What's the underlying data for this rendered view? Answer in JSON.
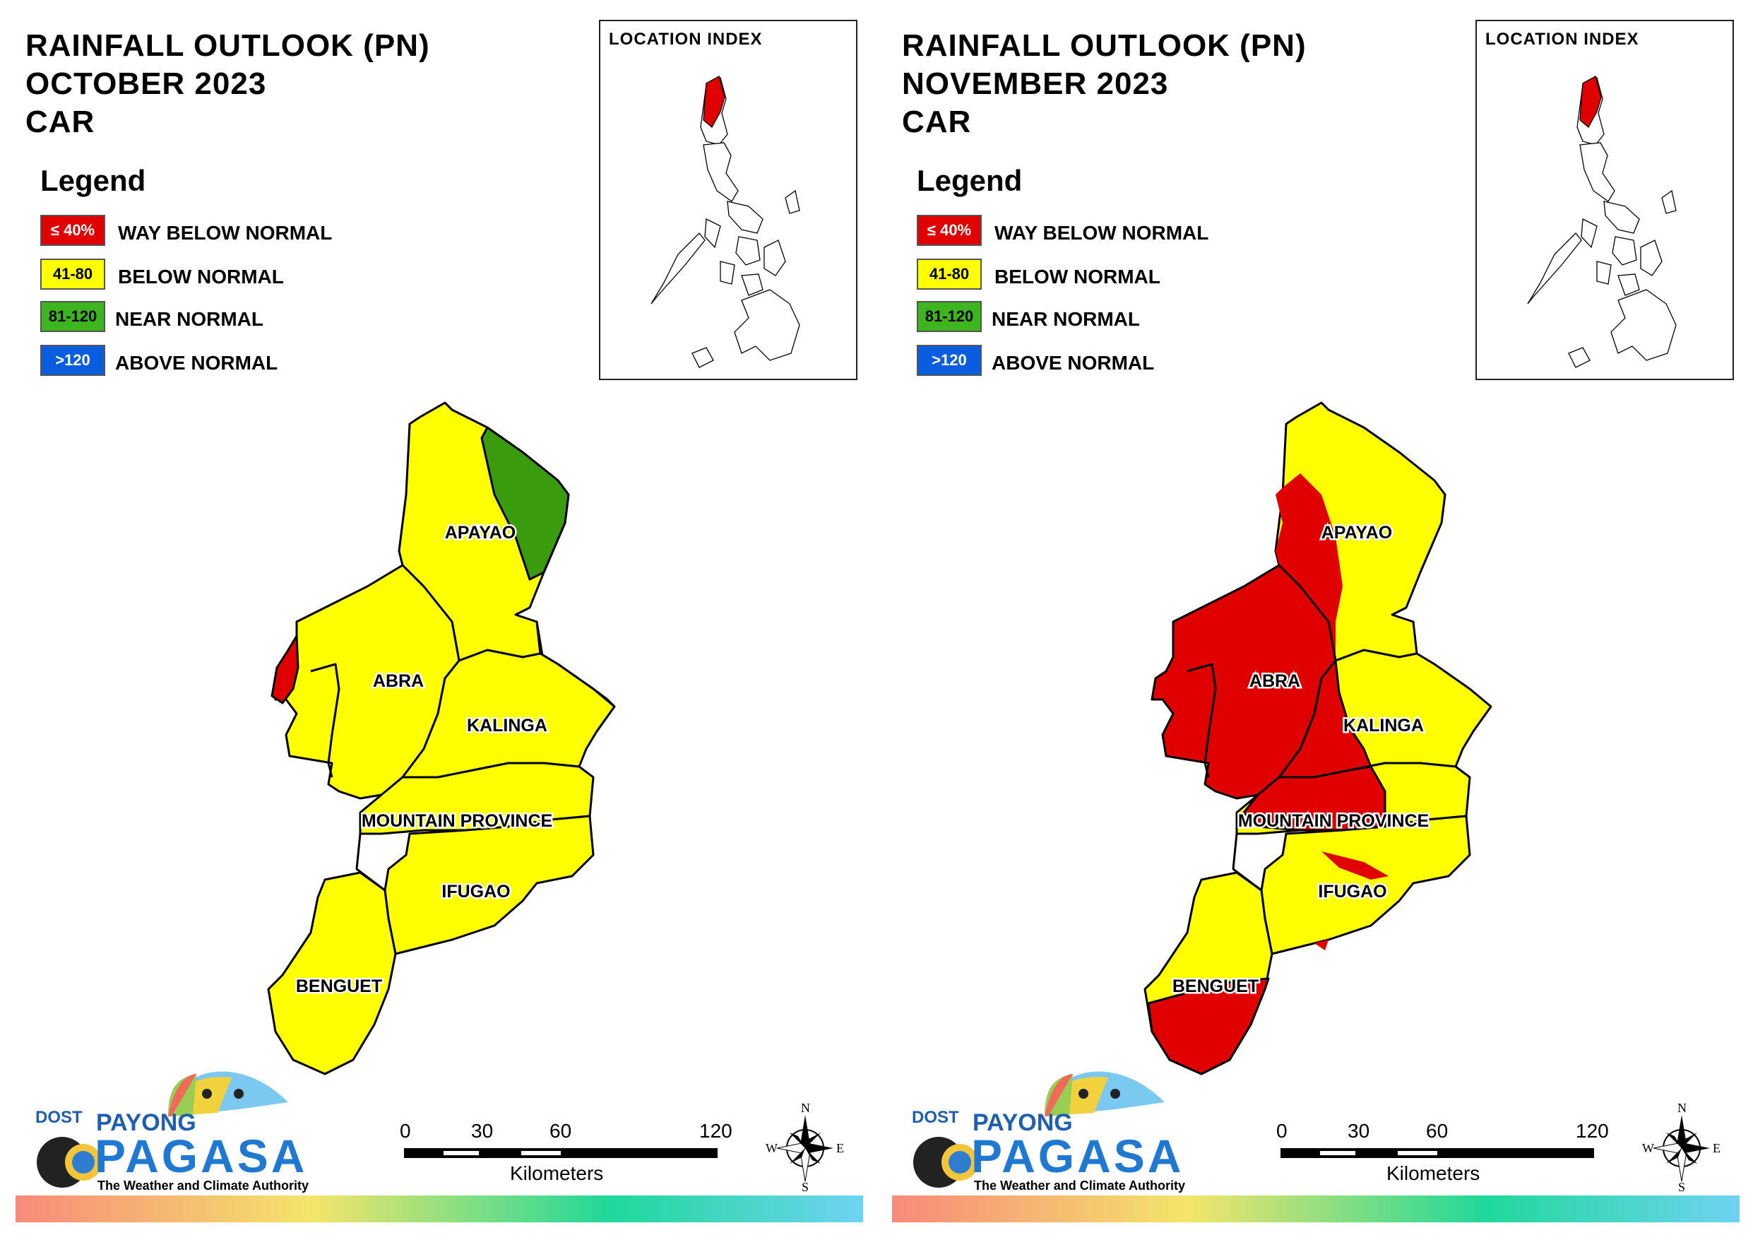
{
  "panels": [
    {
      "title": [
        "RAINFALL OUTLOOK (PN)",
        "OCTOBER 2023",
        "CAR"
      ],
      "legend_title": "Legend",
      "index_title": "LOCATION INDEX",
      "provinces": [
        "APAYAO",
        "ABRA",
        "KALINGA",
        "MOUNTAIN PROVINCE",
        "IFUGAO",
        "BENGUET"
      ]
    },
    {
      "title": [
        "RAINFALL OUTLOOK (PN)",
        "NOVEMBER 2023",
        "CAR"
      ],
      "legend_title": "Legend",
      "index_title": "LOCATION INDEX",
      "provinces": [
        "APAYAO",
        "ABRA",
        "KALINGA",
        "MOUNTAIN PROVINCE",
        "IFUGAO",
        "BENGUET"
      ]
    }
  ],
  "legend": [
    {
      "range": "≤ 40%",
      "label": "WAY BELOW NORMAL",
      "color": "#e00000",
      "text_color": "#ffffff"
    },
    {
      "range": "41-80",
      "label": "BELOW NORMAL",
      "color": "#ffff00",
      "text_color": "#000000"
    },
    {
      "range": "81-120",
      "label": "NEAR NORMAL",
      "color": "#3db51f",
      "text_color": "#000000"
    },
    {
      "range": ">120",
      "label": "ABOVE NORMAL",
      "color": "#0b5de0",
      "text_color": "#ffffff"
    }
  ],
  "scale": {
    "ticks": [
      "0",
      "30",
      "60",
      "120"
    ],
    "unit": "Kilometers"
  },
  "compass": {
    "n": "N",
    "s": "S",
    "e": "E",
    "w": "W"
  },
  "logo": {
    "dost": "DOST",
    "payong": "PAYONG",
    "pagasa": "PAGASA",
    "tagline": "The Weather and Climate Authority"
  },
  "colors": {
    "way_below": "#e00000",
    "below": "#ffff00",
    "near": "#3a9c0c",
    "above": "#0b5de0"
  }
}
